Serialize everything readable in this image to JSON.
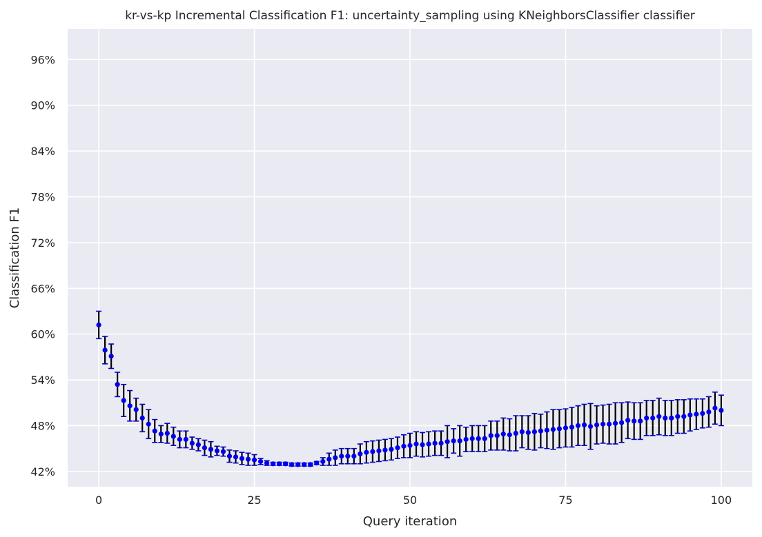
{
  "chart_data": {
    "type": "scatter",
    "title": "kr-vs-kp Incremental Classification F1: uncertainty_sampling using KNeighborsClassifier classifier",
    "xlabel": "Query iteration",
    "ylabel": "Classification F1",
    "xlim": [
      -5,
      105
    ],
    "ylim": [
      0.4,
      1.0
    ],
    "x_ticks": [
      0,
      25,
      50,
      75,
      100
    ],
    "x_tick_labels": [
      "0",
      "25",
      "50",
      "75",
      "100"
    ],
    "y_ticks": [
      0.42,
      0.48,
      0.54,
      0.6,
      0.66,
      0.72,
      0.78,
      0.84,
      0.9,
      0.96
    ],
    "y_tick_labels": [
      "42%",
      "48%",
      "54%",
      "60%",
      "66%",
      "72%",
      "78%",
      "84%",
      "90%",
      "96%"
    ],
    "grid": true,
    "colors": {
      "background": "#eaeaf2",
      "grid": "#ffffff",
      "point": "#0000ee",
      "errorbar": "#000000",
      "cap": "#0000cc"
    },
    "series": [
      {
        "x": [
          0,
          1,
          2,
          3,
          4,
          5,
          6,
          7,
          8,
          9,
          10,
          11,
          12,
          13,
          14,
          15,
          16,
          17,
          18,
          19,
          20,
          21,
          22,
          23,
          24,
          25,
          26,
          27,
          28,
          29,
          30,
          31,
          32,
          33,
          34,
          35,
          36,
          37,
          38,
          39,
          40,
          41,
          42,
          43,
          44,
          45,
          46,
          47,
          48,
          49,
          50,
          51,
          52,
          53,
          54,
          55,
          56,
          57,
          58,
          59,
          60,
          61,
          62,
          63,
          64,
          65,
          66,
          67,
          68,
          69,
          70,
          71,
          72,
          73,
          74,
          75,
          76,
          77,
          78,
          79,
          80,
          81,
          82,
          83,
          84,
          85,
          86,
          87,
          88,
          89,
          90,
          91,
          92,
          93,
          94,
          95,
          96,
          97,
          98,
          99,
          100
        ],
        "y": [
          0.612,
          0.579,
          0.571,
          0.534,
          0.513,
          0.506,
          0.501,
          0.49,
          0.482,
          0.473,
          0.469,
          0.47,
          0.466,
          0.462,
          0.462,
          0.457,
          0.455,
          0.451,
          0.449,
          0.447,
          0.446,
          0.44,
          0.439,
          0.437,
          0.436,
          0.435,
          0.433,
          0.431,
          0.43,
          0.43,
          0.43,
          0.429,
          0.429,
          0.429,
          0.429,
          0.431,
          0.433,
          0.436,
          0.438,
          0.44,
          0.44,
          0.44,
          0.443,
          0.445,
          0.446,
          0.447,
          0.448,
          0.449,
          0.451,
          0.453,
          0.454,
          0.456,
          0.455,
          0.456,
          0.457,
          0.457,
          0.459,
          0.46,
          0.46,
          0.462,
          0.463,
          0.463,
          0.463,
          0.467,
          0.467,
          0.469,
          0.468,
          0.47,
          0.472,
          0.471,
          0.472,
          0.473,
          0.474,
          0.475,
          0.476,
          0.477,
          0.478,
          0.48,
          0.481,
          0.479,
          0.481,
          0.482,
          0.482,
          0.483,
          0.484,
          0.487,
          0.486,
          0.486,
          0.49,
          0.49,
          0.492,
          0.49,
          0.49,
          0.492,
          0.492,
          0.494,
          0.495,
          0.496,
          0.498,
          0.503,
          0.5
        ],
        "err": [
          0.018,
          0.018,
          0.016,
          0.016,
          0.021,
          0.02,
          0.015,
          0.018,
          0.019,
          0.015,
          0.011,
          0.013,
          0.012,
          0.011,
          0.011,
          0.008,
          0.008,
          0.01,
          0.01,
          0.006,
          0.006,
          0.008,
          0.008,
          0.008,
          0.008,
          0.007,
          0.004,
          0.003,
          0.002,
          0.002,
          0.002,
          0.002,
          0.002,
          0.002,
          0.002,
          0.002,
          0.005,
          0.008,
          0.01,
          0.01,
          0.01,
          0.01,
          0.013,
          0.014,
          0.014,
          0.014,
          0.014,
          0.014,
          0.014,
          0.015,
          0.016,
          0.016,
          0.016,
          0.016,
          0.016,
          0.016,
          0.021,
          0.016,
          0.02,
          0.016,
          0.017,
          0.017,
          0.017,
          0.019,
          0.019,
          0.021,
          0.021,
          0.023,
          0.021,
          0.022,
          0.024,
          0.022,
          0.024,
          0.026,
          0.025,
          0.025,
          0.026,
          0.026,
          0.027,
          0.03,
          0.025,
          0.025,
          0.026,
          0.027,
          0.026,
          0.024,
          0.024,
          0.024,
          0.023,
          0.023,
          0.024,
          0.023,
          0.023,
          0.022,
          0.022,
          0.021,
          0.02,
          0.019,
          0.02,
          0.021,
          0.02
        ]
      }
    ]
  }
}
